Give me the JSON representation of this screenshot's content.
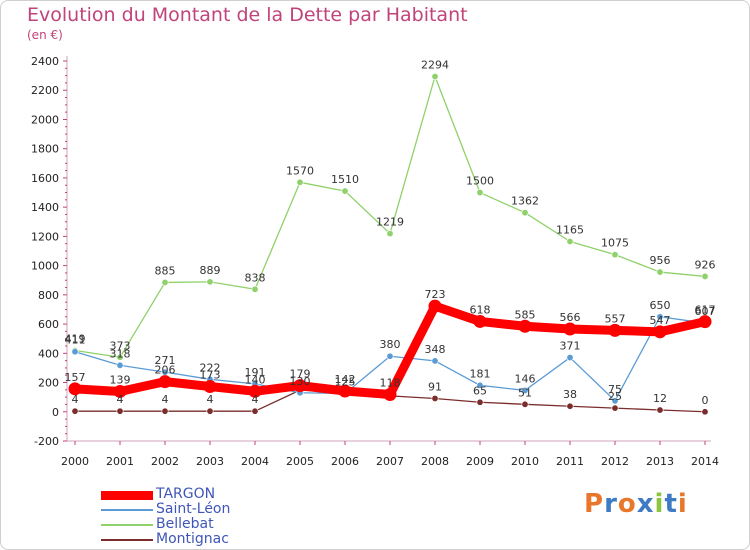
{
  "header": {
    "title": "Evolution du Montant de la Dette par Habitant",
    "unit": "(en €)"
  },
  "brand": {
    "text": "Proxiti",
    "colors": [
      "#e8762b",
      "#3e7bc4",
      "#e8762b",
      "#3e7bc4",
      "#8cc63f",
      "#3e7bc4",
      "#e8762b"
    ]
  },
  "chart_data": {
    "type": "line",
    "title": "Evolution du Montant de la Dette par Habitant",
    "subtitle": "(en €)",
    "xlabel": "",
    "ylabel": "",
    "x": [
      "2000",
      "2001",
      "2002",
      "2003",
      "2004",
      "2005",
      "2006",
      "2007",
      "2008",
      "2009",
      "2010",
      "2011",
      "2012",
      "2013",
      "2014"
    ],
    "ylim": [
      -200,
      2400
    ],
    "yticks": [
      -200,
      0,
      200,
      400,
      600,
      800,
      1000,
      1200,
      1400,
      1600,
      1800,
      2000,
      2200,
      2400
    ],
    "grid": false,
    "legend_position": "bottom-left",
    "series": [
      {
        "name": "TARGON",
        "color": "#ff0000",
        "values": [
          157,
          139,
          206,
          173,
          140,
          179,
          142,
          118,
          723,
          618,
          585,
          566,
          557,
          547,
          617
        ],
        "labels": [
          "157",
          "139",
          "206",
          "173",
          "140",
          "179",
          "142",
          "118",
          "723",
          "618",
          "585",
          "566",
          "557",
          "547",
          "617"
        ]
      },
      {
        "name": "Saint-Léon",
        "color": "#5b9bd5",
        "values": [
          411,
          318,
          271,
          222,
          191,
          130,
          125,
          380,
          348,
          181,
          146,
          371,
          75,
          650,
          607
        ],
        "labels": [
          "411",
          "318",
          "271",
          "222",
          "191",
          "130",
          "125",
          "380",
          "348",
          "181",
          "146",
          "371",
          "75",
          "650",
          "607"
        ]
      },
      {
        "name": "Bellebat",
        "color": "#8fd16a",
        "values": [
          419,
          373,
          885,
          889,
          838,
          1570,
          1510,
          1219,
          2294,
          1500,
          1362,
          1165,
          1075,
          956,
          926
        ],
        "labels": [
          "419",
          "373",
          "885",
          "889",
          "838",
          "1570",
          "1510",
          "1219",
          "2294",
          "1500",
          "1362",
          "1165",
          "1075",
          "956",
          "926"
        ]
      },
      {
        "name": "Montignac",
        "color": "#7b2d2d",
        "values": [
          4,
          4,
          4,
          4,
          4,
          148,
          132,
          109,
          91,
          65,
          51,
          38,
          25,
          12,
          0
        ],
        "labels": [
          "4",
          "4",
          "4",
          "4",
          "4",
          "",
          "",
          "",
          "91",
          "65",
          "51",
          "38",
          "25",
          "12",
          "0"
        ]
      }
    ]
  }
}
